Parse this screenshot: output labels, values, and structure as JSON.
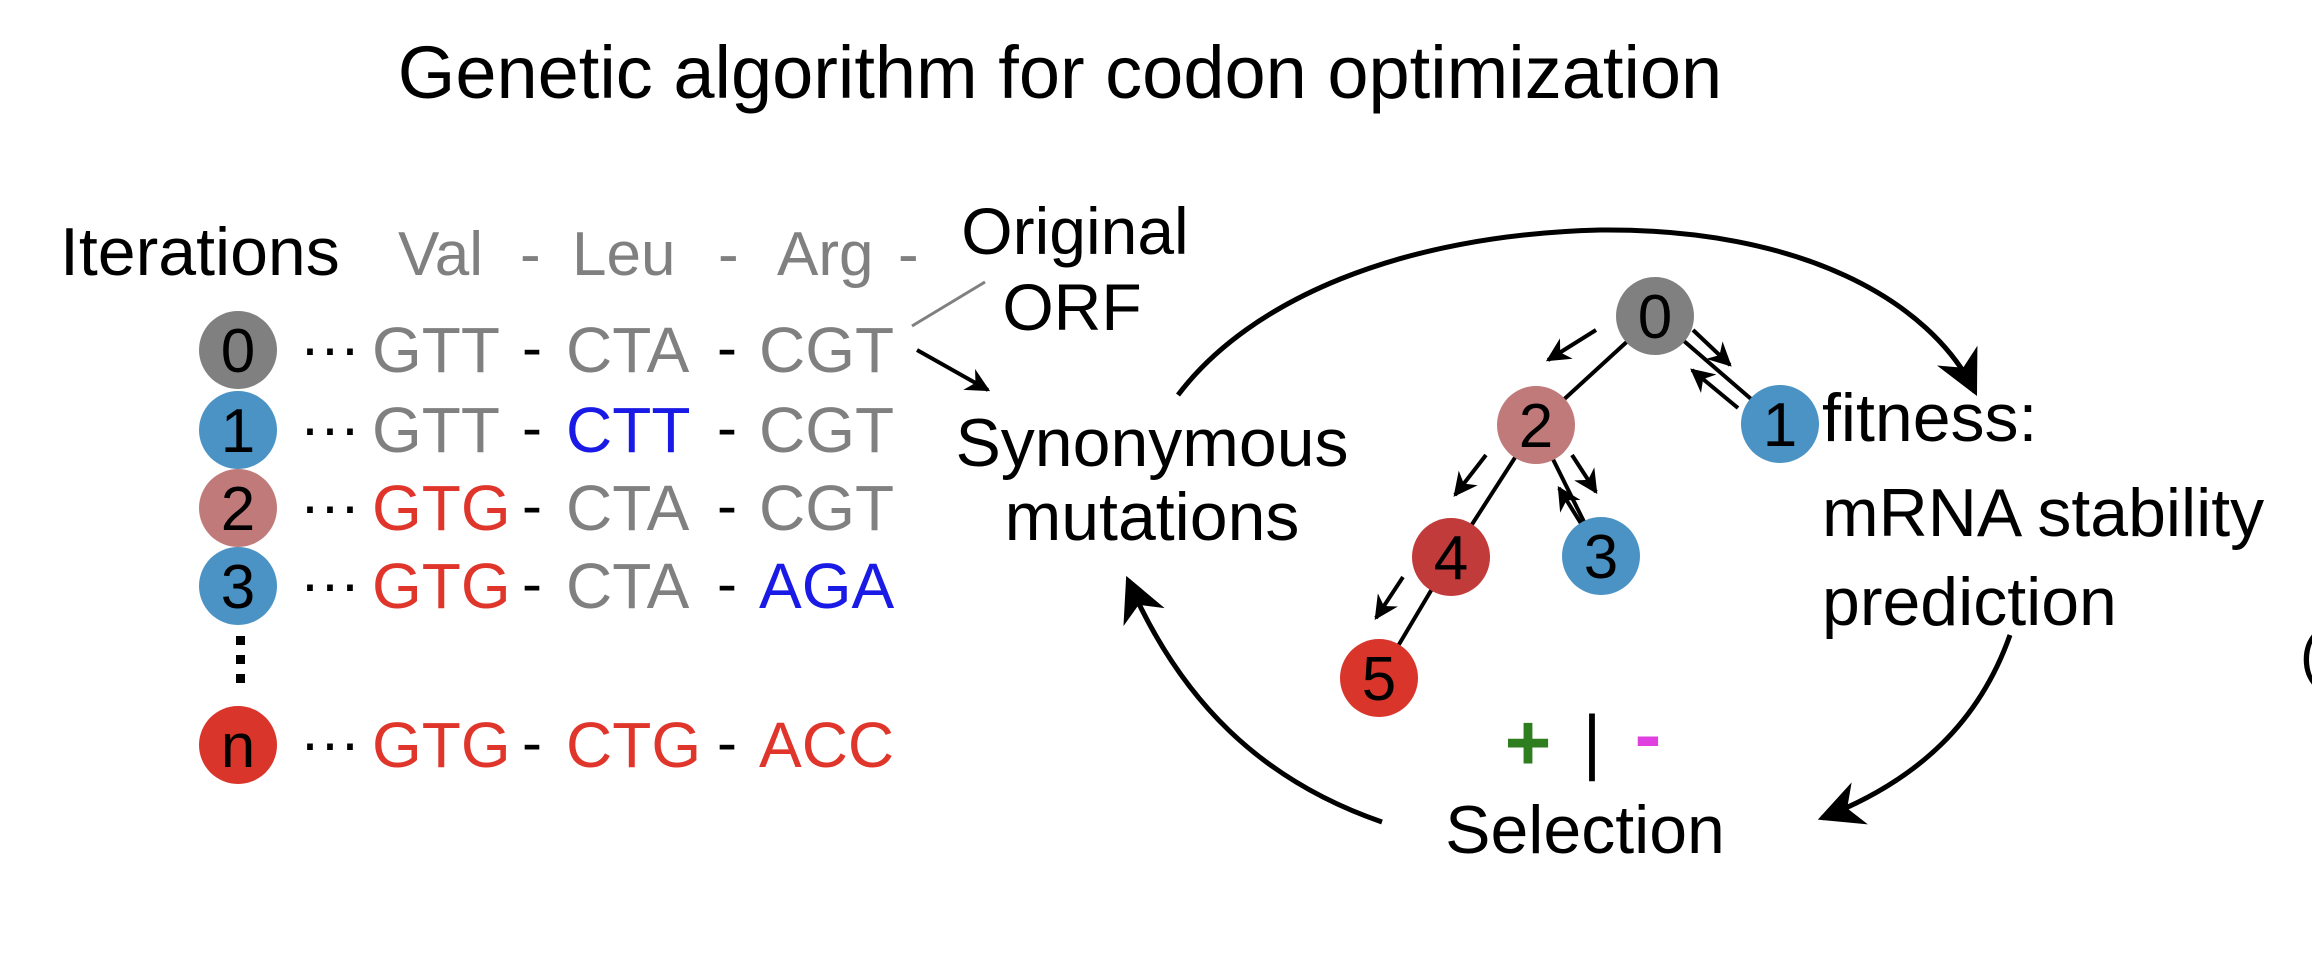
{
  "title": "Genetic algorithm for codon optimization",
  "left": {
    "iterations_label": "Iterations",
    "amino_acids": [
      "Val",
      "Leu",
      "Arg"
    ],
    "sep": "-",
    "ellipsis": "···",
    "vertical_dots": "⋮",
    "original_label_line1": "Original",
    "original_label_line2": "ORF",
    "rows": [
      {
        "label": "0",
        "node_color": "#808080",
        "codons": [
          {
            "text": "GTT",
            "color": "#808080"
          },
          {
            "text": "CTA",
            "color": "#808080"
          },
          {
            "text": "CGT",
            "color": "#808080"
          }
        ]
      },
      {
        "label": "1",
        "node_color": "#4b93c4",
        "codons": [
          {
            "text": "GTT",
            "color": "#808080"
          },
          {
            "text": "CTT",
            "color": "#1a1ae6"
          },
          {
            "text": "CGT",
            "color": "#808080"
          }
        ]
      },
      {
        "label": "2",
        "node_color": "#c07a7a",
        "codons": [
          {
            "text": "GTG",
            "color": "#e0352b"
          },
          {
            "text": "CTA",
            "color": "#808080"
          },
          {
            "text": "CGT",
            "color": "#808080"
          }
        ]
      },
      {
        "label": "3",
        "node_color": "#4b93c4",
        "codons": [
          {
            "text": "GTG",
            "color": "#e0352b"
          },
          {
            "text": "CTA",
            "color": "#808080"
          },
          {
            "text": "AGA",
            "color": "#1a1ae6"
          }
        ]
      },
      {
        "label": "n",
        "node_color": "#d9352b",
        "codons": [
          {
            "text": "GTG",
            "color": "#e0352b"
          },
          {
            "text": "CTG",
            "color": "#e0352b"
          },
          {
            "text": "ACC",
            "color": "#e0352b"
          }
        ]
      }
    ]
  },
  "cycle": {
    "synonymous_line1": "Synonymous",
    "synonymous_line2": "mutations",
    "fitness_line1": "fitness:",
    "fitness_line2": "mRNA stability",
    "fitness_line3": "prediction",
    "selection_label": "Selection",
    "plus": "+",
    "bar": "|",
    "minus": "-",
    "plus_color": "#2e7d1e",
    "minus_color": "#e040e0"
  },
  "tree": {
    "nodes": [
      {
        "label": "0",
        "color": "#808080"
      },
      {
        "label": "1",
        "color": "#4b93c4"
      },
      {
        "label": "2",
        "color": "#c07a7a"
      },
      {
        "label": "3",
        "color": "#4b93c4"
      },
      {
        "label": "4",
        "color": "#c23b3b"
      },
      {
        "label": "5",
        "color": "#d9352b"
      }
    ]
  },
  "right_edge_text": "("
}
